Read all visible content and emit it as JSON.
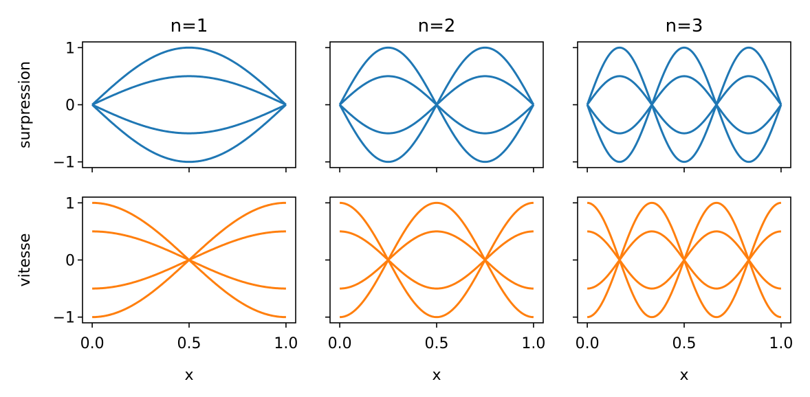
{
  "chart_data": {
    "type": "line",
    "layout": {
      "rows": 2,
      "cols": 3,
      "sharex": true,
      "sharey": true
    },
    "column_titles": [
      "n=1",
      "n=2",
      "n=3"
    ],
    "row_ylabels": [
      "surpression",
      "vitesse"
    ],
    "xlabel": "x",
    "xlim": [
      -0.05,
      1.05
    ],
    "ylim": [
      -1.1,
      1.1
    ],
    "xticks": [
      0.0,
      0.5,
      1.0
    ],
    "xtick_labels": [
      "0.0",
      "0.5",
      "1.0"
    ],
    "yticks": [
      -1,
      0,
      1
    ],
    "ytick_labels": [
      "−1",
      "0",
      "1"
    ],
    "grid": false,
    "colors": {
      "surpression": "#1f77b4",
      "vitesse": "#ff7f0e"
    },
    "amplitudes": [
      1.0,
      0.5,
      -0.5,
      -1.0
    ],
    "modes": [
      1,
      2,
      3
    ],
    "x_samples": [
      0.0,
      0.05,
      0.1,
      0.15,
      0.2,
      0.25,
      0.3,
      0.35,
      0.4,
      0.45,
      0.5,
      0.55,
      0.6,
      0.65,
      0.7,
      0.75,
      0.8,
      0.85,
      0.9,
      0.95,
      1.0
    ],
    "formulas": {
      "surpression": "A*sin(n*pi*x)",
      "vitesse": "A*cos(n*pi*x)"
    }
  }
}
